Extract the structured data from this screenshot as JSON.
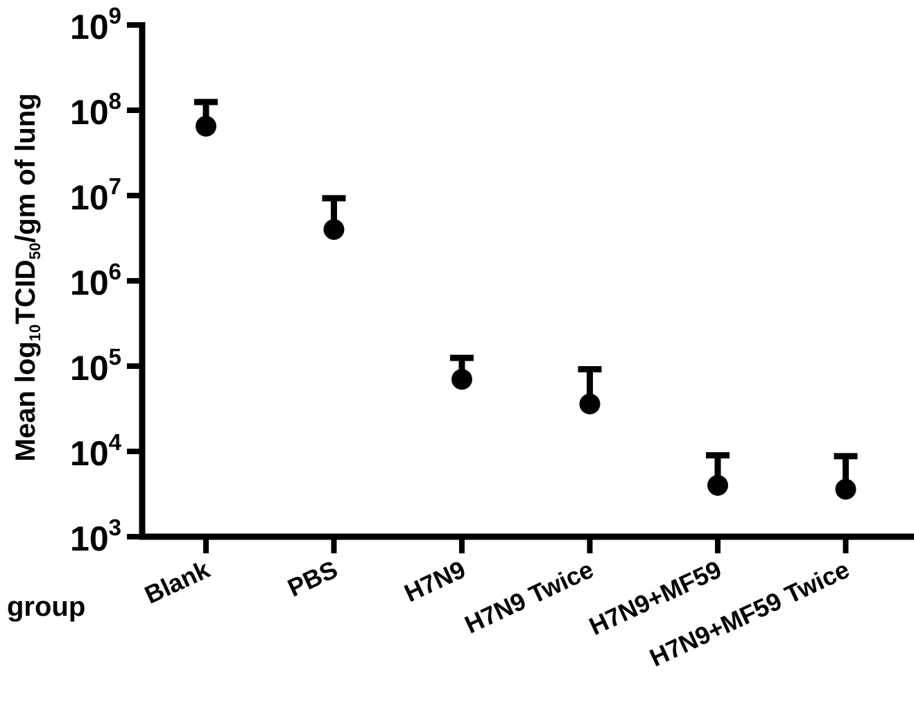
{
  "chart_data": {
    "type": "scatter",
    "title": "",
    "xlabel": "group",
    "ylabel": {
      "prefix": "Mean log",
      "sub1": "10",
      "middle": "TCID",
      "sub2": "50",
      "suffix": "/gm of lung"
    },
    "yscale": "log",
    "ylim": [
      1000,
      1000000000
    ],
    "yticks": [
      {
        "base": "10",
        "exp": "3",
        "value": 1000
      },
      {
        "base": "10",
        "exp": "4",
        "value": 10000
      },
      {
        "base": "10",
        "exp": "5",
        "value": 100000
      },
      {
        "base": "10",
        "exp": "6",
        "value": 1000000
      },
      {
        "base": "10",
        "exp": "7",
        "value": 10000000
      },
      {
        "base": "10",
        "exp": "8",
        "value": 100000000
      },
      {
        "base": "10",
        "exp": "9",
        "value": 1000000000
      }
    ],
    "grid": false,
    "categories": [
      "Blank",
      "PBS",
      "H7N9",
      "H7N9 Twice",
      "H7N9+MF59",
      "H7N9+MF59 Twice"
    ],
    "values": [
      65000000,
      4000000,
      70000,
      36000,
      4000,
      3600
    ],
    "error_upper": [
      125000000,
      9300000,
      125000,
      92000,
      9000,
      8800
    ],
    "marker_color": "#000000",
    "axis_color": "#000000"
  }
}
